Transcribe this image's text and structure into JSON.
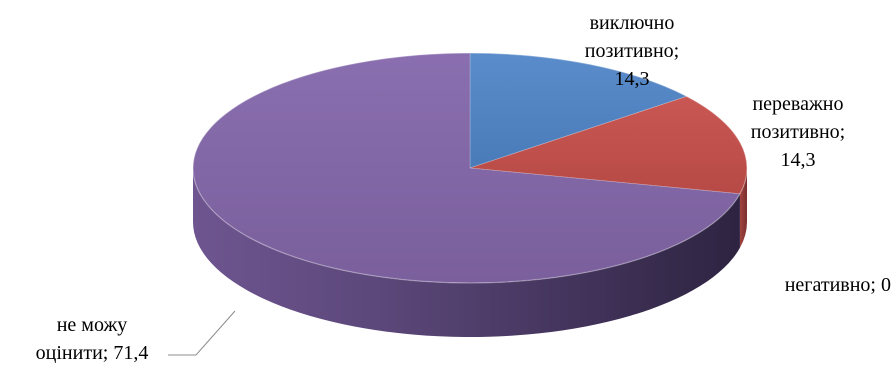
{
  "chart_data": {
    "type": "pie",
    "style": "3d",
    "legend": "none",
    "slices": [
      {
        "name": "виключно позитивно",
        "value": 14.3,
        "color": "#4F81BD",
        "label_lines": [
          "виключно",
          "позитивно;",
          "14,3"
        ]
      },
      {
        "name": "переважно позитивно",
        "value": 14.3,
        "color": "#C0504D",
        "label_lines": [
          "переважно",
          "позитивно;",
          "14,3"
        ]
      },
      {
        "name": "негативно",
        "value": 0,
        "color": "#9BBB59",
        "label_lines": [
          "негативно; 0"
        ]
      },
      {
        "name": "не можу оцінити",
        "value": 71.4,
        "color": "#8064A2",
        "label_lines": [
          "не можу",
          "оцінити; 71,4"
        ]
      }
    ]
  }
}
